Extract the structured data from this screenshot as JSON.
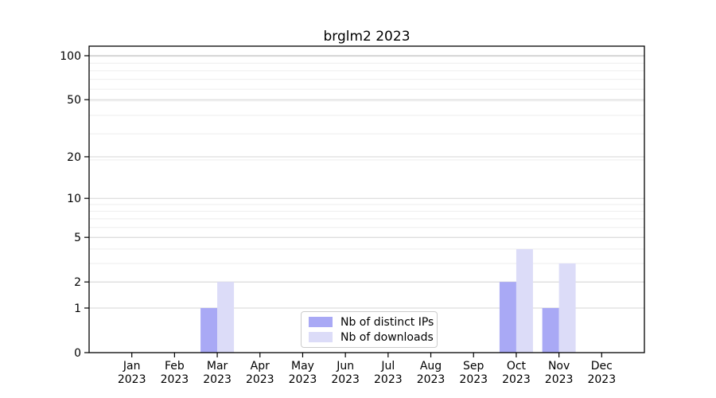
{
  "chart_data": {
    "type": "bar",
    "title": "brglm2 2023",
    "categories": [
      "Jan",
      "Feb",
      "Mar",
      "Apr",
      "May",
      "Jun",
      "Jul",
      "Aug",
      "Sep",
      "Oct",
      "Nov",
      "Dec"
    ],
    "x_year_label": "2023",
    "series": [
      {
        "name": "Nb of distinct IPs",
        "color": "#a9a9f5",
        "values": [
          0,
          0,
          1,
          0,
          0,
          0,
          0,
          0,
          0,
          2,
          1,
          0
        ]
      },
      {
        "name": "Nb of downloads",
        "color": "#dcdcf8",
        "values": [
          0,
          0,
          2,
          0,
          0,
          0,
          0,
          0,
          0,
          4,
          3,
          0
        ]
      }
    ],
    "xlabel": "",
    "ylabel": "",
    "yscale": "log1p",
    "ylim": [
      0,
      117
    ],
    "yticks": [
      0,
      1,
      2,
      5,
      10,
      20,
      50,
      100
    ],
    "minor_gridlines_u": [
      2,
      3,
      4,
      5,
      6,
      7,
      8,
      9,
      10,
      20,
      30,
      40,
      50,
      60,
      70,
      80,
      90,
      100
    ],
    "grid": "on",
    "legend_position": "lower center",
    "colors": {
      "axis": "#000000",
      "grid_major": "#d6d6d6",
      "grid_minor": "#eeeeee",
      "grid_top": "#b8b8b8",
      "text": "#000000",
      "legend_border": "#cccccc",
      "background": "#ffffff"
    }
  }
}
